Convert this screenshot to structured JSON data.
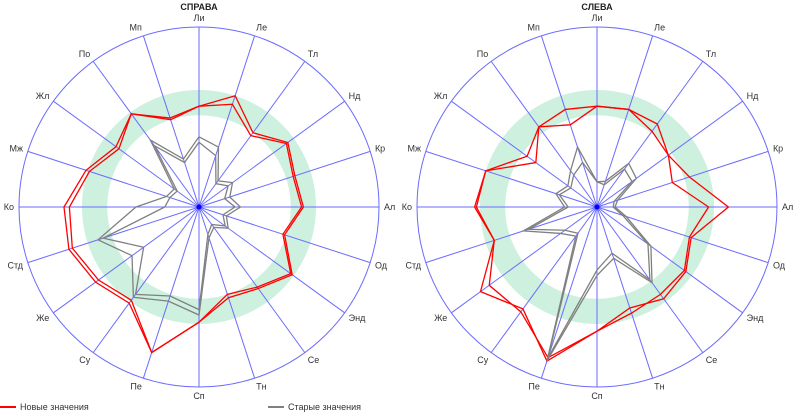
{
  "chart_data": [
    {
      "type": "radar",
      "title": "СПРАВА",
      "axes": [
        "Ли",
        "Ле",
        "Тл",
        "Нд",
        "Кр",
        "Ал",
        "Од",
        "Энд",
        "Се",
        "Тн",
        "Сп",
        "Пе",
        "Су",
        "Же",
        "Стд",
        "Ко",
        "Мж",
        "Жл",
        "По",
        "Мп"
      ],
      "rmax": 100,
      "target_band": [
        51,
        65
      ],
      "series": [
        {
          "name": "Новые значения",
          "color": "#ff0000",
          "lines": [
            [
              56,
              65,
              51,
              61,
              56,
              58,
              50,
              64,
              56,
              53,
              64,
              85,
              66,
              71,
              76,
              75,
              66,
              57,
              64,
              51
            ],
            [
              56,
              60,
              49,
              60,
              55,
              57,
              49,
              63,
              55,
              51,
              64,
              85,
              64,
              69,
              74,
              72,
              64,
              55,
              64,
              52
            ]
          ]
        },
        {
          "name": "Старые значения",
          "color": "#808080",
          "lines": [
            [
              39,
              35,
              18,
              23,
              18,
              23,
              16,
              20,
              14,
              18,
              60,
              55,
              62,
              46,
              59,
              35,
              19,
              17,
              46,
              28
            ],
            [
              36,
              30,
              16,
              20,
              15,
              20,
              14,
              18,
              12,
              16,
              57,
              52,
              60,
              38,
              56,
              19,
              17,
              15,
              42,
              26
            ]
          ]
        }
      ]
    },
    {
      "type": "radar",
      "title": "СЛЕВА",
      "axes": [
        "Ли",
        "Ле",
        "Тл",
        "Нд",
        "Кр",
        "Ал",
        "Од",
        "Энд",
        "Се",
        "Тн",
        "Сп",
        "Пе",
        "Су",
        "Же",
        "Стд",
        "Ко",
        "Мж",
        "Жл",
        "По",
        "Мп"
      ],
      "rmax": 100,
      "target_band": [
        51,
        65
      ],
      "series": [
        {
          "name": "Новые значения",
          "color": "#ff0000",
          "lines": [
            [
              56,
              57,
              57,
              49,
              54,
              73,
              55,
              61,
              63,
              59,
              69,
              90,
              70,
              80,
              60,
              68,
              65,
              48,
              55,
              57
            ],
            [
              56,
              57,
              52,
              49,
              44,
              62,
              54,
              60,
              60,
              62,
              69,
              88,
              72,
              74,
              60,
              67,
              65,
              42,
              55,
              48
            ]
          ]
        },
        {
          "name": "Старые значения",
          "color": "#808080",
          "lines": [
            [
              14,
              15,
              30,
              27,
              12,
              10,
              17,
              37,
              52,
              30,
              38,
              90,
              20,
              25,
              43,
              18,
              24,
              20,
              25,
              35
            ],
            [
              14,
              13,
              26,
              24,
              10,
              9,
              15,
              35,
              50,
              27,
              35,
              88,
              18,
              22,
              40,
              16,
              22,
              18,
              22,
              26
            ]
          ]
        }
      ]
    }
  ],
  "legend": {
    "new_label": "Новые значения",
    "old_label": "Старые значения"
  }
}
